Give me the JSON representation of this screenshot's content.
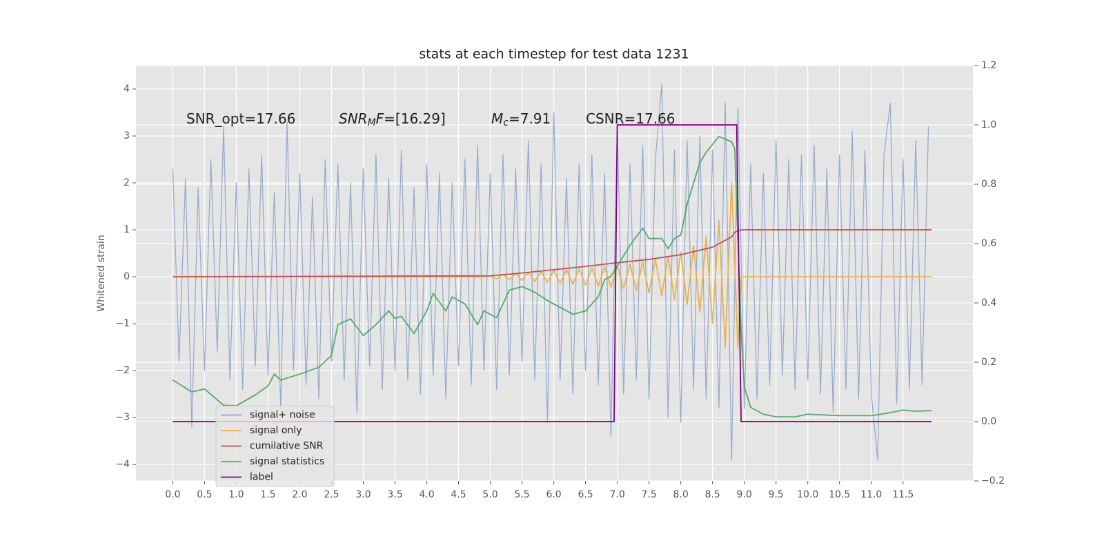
{
  "chart_data": {
    "type": "line",
    "title": "stats at each timestep for test data 1231",
    "ylabel": "Whitened strain",
    "xlim": [
      -0.58,
      12.6
    ],
    "ylim": [
      -4.35,
      4.5
    ],
    "y2lim": [
      -0.2,
      1.2
    ],
    "grid": true,
    "legend_loc": "lower left",
    "xticks": [
      {
        "value": 0,
        "label": "0.0"
      },
      0.5,
      {
        "value": 1,
        "label": "1.0"
      },
      1.5,
      {
        "value": 2,
        "label": "2.0"
      },
      2.5,
      {
        "value": 3,
        "label": "3.0"
      },
      3.5,
      {
        "value": 4,
        "label": "4.0"
      },
      4.5,
      {
        "value": 5,
        "label": "5.0"
      },
      5.5,
      {
        "value": 6,
        "label": "6.0"
      },
      6.5,
      {
        "value": 7,
        "label": "7.0"
      },
      7.5,
      {
        "value": 8,
        "label": "8.0"
      },
      8.5,
      {
        "value": 9,
        "label": "9.0"
      },
      9.5,
      {
        "value": 10,
        "label": "10.0"
      },
      10.5,
      {
        "value": 11,
        "label": "11.0"
      },
      11.5
    ],
    "yticks": [
      {
        "value": -4,
        "label": "−4"
      },
      {
        "value": -3,
        "label": "−3"
      },
      {
        "value": -2,
        "label": "−2"
      },
      {
        "value": -1,
        "label": "−1"
      },
      0,
      1,
      2,
      3,
      4
    ],
    "y2ticks": [
      {
        "value": -0.2,
        "label": "−0.2"
      },
      {
        "value": 0,
        "label": "0.0"
      },
      0.2,
      0.4,
      0.6,
      0.8,
      {
        "value": 1,
        "label": "1.0"
      },
      1.2
    ],
    "annotations": [
      [
        {
          "text": "SNR_opt=17.66",
          "style": "normal"
        }
      ],
      [
        {
          "text": "SNR",
          "style": "italic"
        },
        {
          "text": "M",
          "style": "sub"
        },
        {
          "text": "F",
          "style": "italic"
        },
        {
          "text": "=[16.29]",
          "style": "normal"
        }
      ],
      [
        {
          "text": "M",
          "style": "italic"
        },
        {
          "text": "c",
          "style": "sub"
        },
        {
          "text": "=7.91",
          "style": "normal"
        }
      ],
      [
        {
          "text": "CSNR=17.66",
          "style": "normal"
        }
      ]
    ],
    "series": [
      {
        "name": "signal+ noise",
        "color": "#8fa4cb",
        "x": [
          0,
          0.1,
          0.2,
          0.3,
          0.4,
          0.5,
          0.6,
          0.7,
          0.8,
          0.9,
          1,
          1.1,
          1.2,
          1.3,
          1.4,
          1.5,
          1.6,
          1.7,
          1.8,
          1.9,
          2,
          2.1,
          2.2,
          2.3,
          2.4,
          2.5,
          2.6,
          2.7,
          2.8,
          2.9,
          3,
          3.1,
          3.2,
          3.3,
          3.4,
          3.5,
          3.6,
          3.7,
          3.8,
          3.9,
          4,
          4.1,
          4.2,
          4.3,
          4.4,
          4.5,
          4.6,
          4.7,
          4.8,
          4.9,
          5,
          5.1,
          5.2,
          5.3,
          5.4,
          5.5,
          5.6,
          5.7,
          5.8,
          5.9,
          6,
          6.1,
          6.2,
          6.3,
          6.4,
          6.5,
          6.6,
          6.7,
          6.8,
          6.9,
          7,
          7.1,
          7.2,
          7.3,
          7.4,
          7.5,
          7.6,
          7.7,
          7.8,
          7.9,
          8,
          8.1,
          8.2,
          8.3,
          8.4,
          8.5,
          8.6,
          8.7,
          8.8,
          8.9,
          9,
          9.1,
          9.2,
          9.3,
          9.4,
          9.5,
          9.6,
          9.7,
          9.8,
          9.9,
          10,
          10.1,
          10.2,
          10.3,
          10.4,
          10.5,
          10.6,
          10.7,
          10.8,
          10.9,
          11,
          11.1,
          11.2,
          11.3,
          11.4,
          11.5,
          11.6,
          11.7,
          11.8,
          11.9
        ],
        "values": [
          2.3,
          -1.8,
          2.1,
          -3.2,
          1.9,
          -2.0,
          2.5,
          -1.6,
          3.2,
          -2.2,
          2.0,
          -2.4,
          2.3,
          -1.9,
          2.6,
          -2.1,
          1.8,
          -2.8,
          3.3,
          -2.0,
          2.2,
          -2.3,
          1.7,
          -2.6,
          2.5,
          -1.8,
          2.4,
          -2.2,
          2.0,
          -2.9,
          2.3,
          -1.9,
          2.6,
          -2.4,
          2.1,
          -2.0,
          2.7,
          -2.2,
          1.9,
          -2.5,
          2.4,
          -2.1,
          2.2,
          -2.6,
          2.0,
          -1.9,
          2.5,
          -2.3,
          2.8,
          -2.0,
          2.2,
          -2.4,
          2.6,
          -2.1,
          2.3,
          -1.8,
          2.9,
          -2.2,
          2.4,
          -3.1,
          3.5,
          -2.2,
          2.1,
          -2.5,
          2.4,
          -2.0,
          2.6,
          -2.3,
          2.2,
          -3.4,
          3.2,
          -2.5,
          2.4,
          -2.2,
          2.8,
          -2.6,
          2.5,
          4.1,
          -3.0,
          2.7,
          -3.1,
          2.9,
          -2.4,
          3.0,
          -2.6,
          2.7,
          -2.8,
          3.7,
          -3.9,
          3.6,
          -2.8,
          2.4,
          -2.6,
          2.2,
          -2.3,
          2.9,
          -2.1,
          2.5,
          -2.4,
          2.6,
          -2.2,
          2.8,
          -2.5,
          2.3,
          -2.9,
          2.6,
          -2.4,
          3.1,
          -2.6,
          2.7,
          -2.5,
          -3.9,
          2.6,
          3.7,
          -2.7,
          2.5,
          -2.4,
          2.9,
          -2.3,
          3.2
        ]
      },
      {
        "name": "signal only",
        "color": "#e8b24c",
        "x": [
          0,
          4.9,
          5,
          5.1,
          5.2,
          5.3,
          5.4,
          5.5,
          5.6,
          5.7,
          5.8,
          5.9,
          6,
          6.1,
          6.2,
          6.3,
          6.4,
          6.5,
          6.6,
          6.7,
          6.8,
          6.9,
          7,
          7.1,
          7.2,
          7.3,
          7.4,
          7.5,
          7.6,
          7.7,
          7.8,
          7.9,
          8,
          8.1,
          8.2,
          8.3,
          8.4,
          8.5,
          8.6,
          8.7,
          8.8,
          8.9,
          8.95,
          11.95
        ],
        "values": [
          0,
          0,
          0.02,
          -0.04,
          0.05,
          -0.06,
          0.07,
          -0.08,
          0.09,
          -0.1,
          0.11,
          -0.12,
          0.13,
          -0.14,
          0.15,
          -0.16,
          0.17,
          -0.18,
          0.19,
          -0.2,
          0.21,
          -0.22,
          0.23,
          -0.25,
          0.27,
          -0.29,
          0.31,
          -0.34,
          0.37,
          -0.4,
          0.44,
          -0.48,
          0.53,
          -0.59,
          0.66,
          -0.75,
          0.86,
          -1.0,
          1.2,
          -1.5,
          2.0,
          -1.5,
          0,
          0
        ]
      },
      {
        "name": "cumilative SNR",
        "color": "#c44e52",
        "x": [
          0,
          5,
          5.5,
          6,
          6.5,
          7,
          7.5,
          8,
          8.5,
          8.8,
          8.85,
          8.95,
          11.95
        ],
        "values": [
          0,
          0.02,
          0.08,
          0.15,
          0.22,
          0.3,
          0.37,
          0.47,
          0.63,
          0.85,
          0.95,
          1,
          1
        ]
      },
      {
        "name": "signal statistics",
        "color": "#55a868",
        "axis": "y2",
        "x": [
          0,
          0.3,
          0.5,
          0.8,
          1,
          1.3,
          1.5,
          1.6,
          1.7,
          2,
          2.3,
          2.5,
          2.6,
          2.8,
          3,
          3.2,
          3.4,
          3.5,
          3.6,
          3.8,
          4,
          4.1,
          4.3,
          4.4,
          4.6,
          4.8,
          4.9,
          5.1,
          5.3,
          5.5,
          5.7,
          5.9,
          6.1,
          6.3,
          6.5,
          6.7,
          6.8,
          6.9,
          7,
          7.2,
          7.4,
          7.5,
          7.7,
          7.8,
          7.9,
          8,
          8.1,
          8.3,
          8.4,
          8.6,
          8.8,
          8.85,
          8.95,
          9,
          9.1,
          9.3,
          9.5,
          9.8,
          10,
          10.5,
          11,
          11.3,
          11.5,
          11.7,
          11.95
        ],
        "values": [
          0.14,
          0.1,
          0.11,
          0.055,
          0.053,
          0.09,
          0.12,
          0.16,
          0.14,
          0.16,
          0.183,
          0.223,
          0.327,
          0.346,
          0.29,
          0.327,
          0.373,
          0.348,
          0.355,
          0.297,
          0.373,
          0.432,
          0.373,
          0.42,
          0.397,
          0.327,
          0.373,
          0.35,
          0.443,
          0.455,
          0.436,
          0.408,
          0.385,
          0.362,
          0.373,
          0.42,
          0.478,
          0.49,
          0.524,
          0.594,
          0.652,
          0.617,
          0.617,
          0.583,
          0.617,
          0.629,
          0.733,
          0.873,
          0.908,
          0.961,
          0.943,
          0.92,
          0.304,
          0.118,
          0.048,
          0.025,
          0.016,
          0.016,
          0.025,
          0.02,
          0.02,
          0.03,
          0.039,
          0.035,
          0.037
        ]
      },
      {
        "name": "label",
        "color": "#800080",
        "axis": "y2",
        "x": [
          0,
          6.95,
          7.0,
          8.88,
          8.95,
          11.95
        ],
        "values": [
          0,
          0,
          1,
          1,
          0,
          0
        ]
      }
    ]
  }
}
